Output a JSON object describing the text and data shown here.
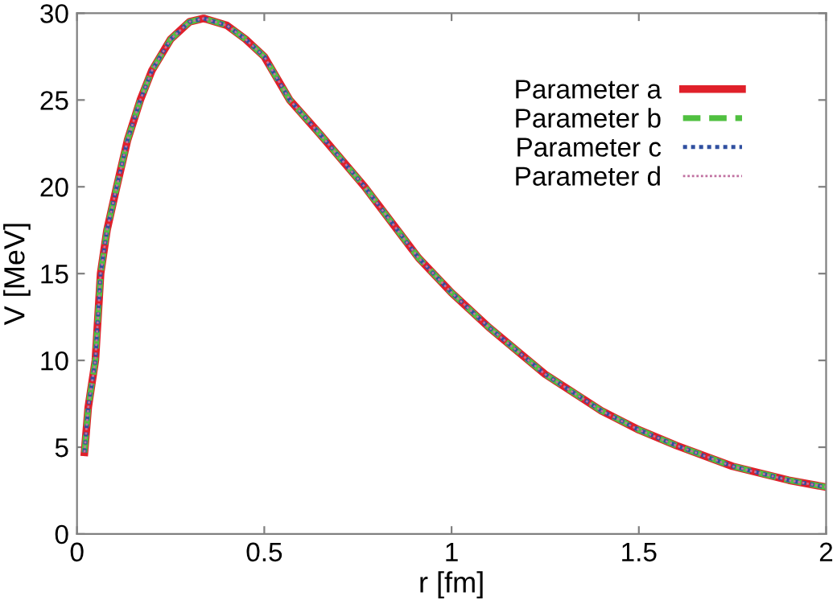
{
  "chart_data": {
    "type": "line",
    "xlabel": "r [fm]",
    "ylabel": "V [MeV]",
    "x": [
      0.02,
      0.03,
      0.049,
      0.063,
      0.08,
      0.106,
      0.135,
      0.169,
      0.2,
      0.25,
      0.3,
      0.338,
      0.4,
      0.45,
      0.5,
      0.568,
      0.65,
      0.768,
      0.912,
      1.0,
      1.1,
      1.25,
      1.4,
      1.5,
      1.6,
      1.75,
      1.9,
      2.0
    ],
    "series": [
      {
        "name": "Parameter a",
        "color": "#e0202a",
        "line_style": "solid",
        "values": [
          4.7,
          7.3,
          10,
          15,
          17.5,
          20,
          22.7,
          25,
          26.7,
          28.5,
          29.5,
          29.7,
          29.3,
          28.5,
          27.5,
          25,
          23,
          20,
          15.9,
          13.9,
          11.9,
          9.2,
          7.1,
          6.0,
          5.1,
          3.9,
          3.1,
          2.7
        ]
      },
      {
        "name": "Parameter b",
        "color": "#50c040",
        "line_style": "dashed",
        "values": [
          4.7,
          7.3,
          10,
          15,
          17.5,
          20,
          22.7,
          25,
          26.7,
          28.5,
          29.5,
          29.7,
          29.3,
          28.5,
          27.5,
          25,
          23,
          20,
          15.9,
          13.9,
          11.9,
          9.2,
          7.1,
          6.0,
          5.1,
          3.9,
          3.1,
          2.7
        ]
      },
      {
        "name": "Parameter c",
        "color": "#3050a0",
        "line_style": "dotted",
        "values": [
          4.7,
          7.3,
          10,
          15,
          17.5,
          20,
          22.7,
          25,
          26.7,
          28.5,
          29.5,
          29.7,
          29.3,
          28.5,
          27.5,
          25,
          23,
          20,
          15.9,
          13.9,
          11.9,
          9.2,
          7.1,
          6.0,
          5.1,
          3.9,
          3.1,
          2.7
        ]
      },
      {
        "name": "Parameter d",
        "color": "#c070a0",
        "line_style": "dotted",
        "values": [
          4.7,
          7.3,
          10,
          15,
          17.5,
          20,
          22.7,
          25,
          26.7,
          28.5,
          29.5,
          29.7,
          29.3,
          28.5,
          27.5,
          25,
          23,
          20,
          15.9,
          13.9,
          11.9,
          9.2,
          7.1,
          6.0,
          5.1,
          3.9,
          3.1,
          2.7
        ]
      }
    ],
    "xlim": [
      0,
      2
    ],
    "xticks": [
      0,
      0.5,
      1,
      1.5,
      2
    ],
    "ylim": [
      0,
      30
    ],
    "yticks": [
      0,
      5,
      10,
      15,
      20,
      25,
      30
    ],
    "grid": false,
    "legend": "top right",
    "marker": "none"
  }
}
